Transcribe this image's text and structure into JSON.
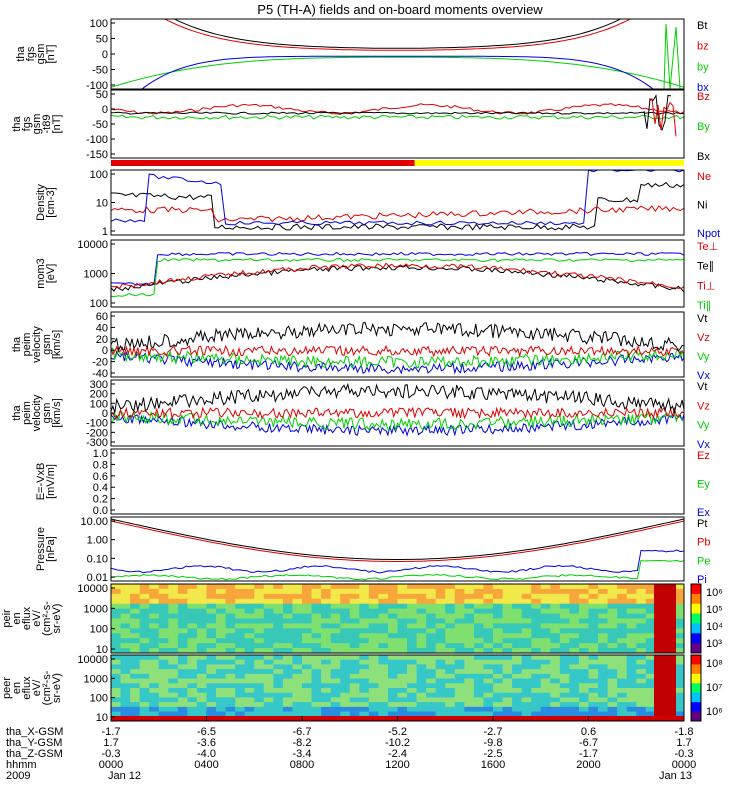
{
  "title": "P5 (TH-A) fields and on-board moments overview",
  "colors": {
    "black": "#000000",
    "red": "#e00000",
    "green": "#00d000",
    "blue": "#0000e0",
    "yellow": "#ffff00"
  },
  "panels": [
    {
      "id": "fgs",
      "ylabel": [
        "tha",
        "fgs",
        "gsm",
        "[nT]"
      ],
      "yticks": [
        "100",
        "50",
        "0",
        "-50",
        "-100"
      ],
      "legend": [
        {
          "text": "Bt",
          "color": "#000000"
        },
        {
          "text": "bz",
          "color": "#e00000"
        },
        {
          "text": "by",
          "color": "#00d000"
        },
        {
          "text": "bx",
          "color": "#0000e0"
        }
      ]
    },
    {
      "id": "fgs_dc",
      "ylabel": [
        "tha",
        "fgs",
        "gsm",
        "-t89",
        "[nT]"
      ],
      "yticks": [
        "50",
        "0",
        "-50",
        "-100",
        "-150"
      ],
      "legend": [
        {
          "text": "Bz",
          "color": "#e00000"
        },
        {
          "text": "By",
          "color": "#00d000"
        },
        {
          "text": "Bx",
          "color": "#000000"
        }
      ]
    },
    {
      "id": "density",
      "ylabel": [
        "Density",
        "[cm-3]"
      ],
      "yticks": [
        "100",
        "10",
        "1"
      ],
      "legend": [
        {
          "text": "Ne",
          "color": "#e00000"
        },
        {
          "text": "Ni",
          "color": "#000000"
        },
        {
          "text": "Npot",
          "color": "#0000e0"
        }
      ]
    },
    {
      "id": "temp",
      "ylabel": [
        "mom3",
        "[eV]"
      ],
      "yticks": [
        "10000",
        "1000",
        "100"
      ],
      "legend": [
        {
          "text": "Te⊥",
          "color": "#e00000"
        },
        {
          "text": "Te∥",
          "color": "#000000"
        },
        {
          "text": "Ti⊥",
          "color": "#e00000"
        },
        {
          "text": "Ti∥",
          "color": "#00d000"
        }
      ]
    },
    {
      "id": "vel_e",
      "ylabel": [
        "tha",
        "peim",
        "velocity",
        "gsm",
        "[km/s]"
      ],
      "yticks": [
        "60",
        "40",
        "20",
        "0",
        "-20",
        "-40"
      ],
      "legend": [
        {
          "text": "Vt",
          "color": "#000000"
        },
        {
          "text": "Vz",
          "color": "#e00000"
        },
        {
          "text": "Vy",
          "color": "#00d000"
        },
        {
          "text": "Vx",
          "color": "#0000e0"
        }
      ]
    },
    {
      "id": "vel_i",
      "ylabel": [
        "tha",
        "peim",
        "velocity",
        "gsm",
        "[km/s]"
      ],
      "yticks": [
        "300",
        "200",
        "100",
        "0",
        "-100",
        "-200",
        "-300"
      ],
      "legend": [
        {
          "text": "Vt",
          "color": "#000000"
        },
        {
          "text": "Vz",
          "color": "#e00000"
        },
        {
          "text": "Vy",
          "color": "#00d000"
        },
        {
          "text": "Vx",
          "color": "#0000e0"
        }
      ]
    },
    {
      "id": "efield",
      "ylabel": [
        "E=-VxB",
        "[mV/m]"
      ],
      "yticks": [
        "1.0",
        "0.8",
        "0.6",
        "0.4",
        "0.2",
        "0.0"
      ],
      "legend": [
        {
          "text": "Ez",
          "color": "#e00000"
        },
        {
          "text": "Ey",
          "color": "#00d000"
        },
        {
          "text": "Ex",
          "color": "#0000e0"
        }
      ]
    },
    {
      "id": "pressure",
      "ylabel": [
        "Pressure",
        "[nPa]"
      ],
      "yticks": [
        "10.00",
        "1.00",
        "0.10",
        "0.01"
      ],
      "legend": [
        {
          "text": "Pt",
          "color": "#000000"
        },
        {
          "text": "Pb",
          "color": "#e00000"
        },
        {
          "text": "Pe",
          "color": "#00d000"
        },
        {
          "text": "Pi",
          "color": "#0000e0"
        }
      ]
    },
    {
      "id": "ion_spec",
      "ylabel": [
        "tha",
        "peir",
        "en",
        "eflux",
        "eV/",
        "(cm²-s-",
        "sr-eV)"
      ],
      "yticks": [
        "10000",
        "1000",
        "100",
        "10"
      ],
      "colorbar": [
        "10⁶",
        "10⁵",
        "10⁴",
        "10³"
      ]
    },
    {
      "id": "elec_spec",
      "ylabel": [
        "tha",
        "peer",
        "en",
        "eflux",
        "eV/",
        "(cm²-s-",
        "sr-eV)"
      ],
      "yticks": [
        "10000",
        "1000",
        "100",
        "10"
      ],
      "colorbar": [
        "10⁸",
        "10⁷",
        "10⁶"
      ]
    }
  ],
  "xaxis": {
    "rows": [
      {
        "label": "tha_X-GSM",
        "values": [
          "-1.7",
          "-6.5",
          "-6.7",
          "-5.2",
          "-2.7",
          "0.6",
          "-1.8"
        ]
      },
      {
        "label": "tha_Y-GSM",
        "values": [
          "1.7",
          "-3.6",
          "-8.2",
          "-10.2",
          "-9.8",
          "-6.7",
          "1.7"
        ]
      },
      {
        "label": "tha_Z-GSM",
        "values": [
          "-0.3",
          "-4.0",
          "-3.4",
          "-2.4",
          "-2.5",
          "-1.7",
          "-0.3"
        ]
      },
      {
        "label": "hhmm",
        "values": [
          "0000",
          "0400",
          "0800",
          "1200",
          "1600",
          "2000",
          "0000"
        ]
      },
      {
        "label": "2009",
        "values": [
          "Jan 12",
          "",
          "",
          "",
          "",
          "",
          "Jan 13"
        ]
      }
    ]
  },
  "chart_data": {
    "type": "line",
    "title": "P5 (TH-A) fields and on-board moments overview",
    "x": [
      "0000",
      "0400",
      "0800",
      "1200",
      "1600",
      "2000",
      "0000"
    ],
    "series": [
      {
        "name": "Bt",
        "values": [
          100,
          40,
          22,
          16,
          22,
          40,
          100
        ]
      },
      {
        "name": "bz",
        "values": [
          100,
          38,
          22,
          15,
          20,
          35,
          50
        ]
      },
      {
        "name": "by",
        "values": [
          -50,
          -35,
          -15,
          -5,
          -15,
          -40,
          -60
        ]
      },
      {
        "name": "bx",
        "values": [
          -100,
          -40,
          -15,
          -5,
          -15,
          -40,
          -100
        ]
      },
      {
        "name": "Pt",
        "values": [
          10,
          0.3,
          0.08,
          0.05,
          0.08,
          0.5,
          10
        ]
      },
      {
        "name": "Pi",
        "values": [
          0.1,
          0.03,
          0.03,
          0.03,
          0.03,
          0.04,
          1
        ]
      },
      {
        "name": "Pe",
        "values": [
          0.05,
          0.02,
          0.01,
          0.01,
          0.01,
          0.015,
          0.3
        ]
      }
    ]
  }
}
